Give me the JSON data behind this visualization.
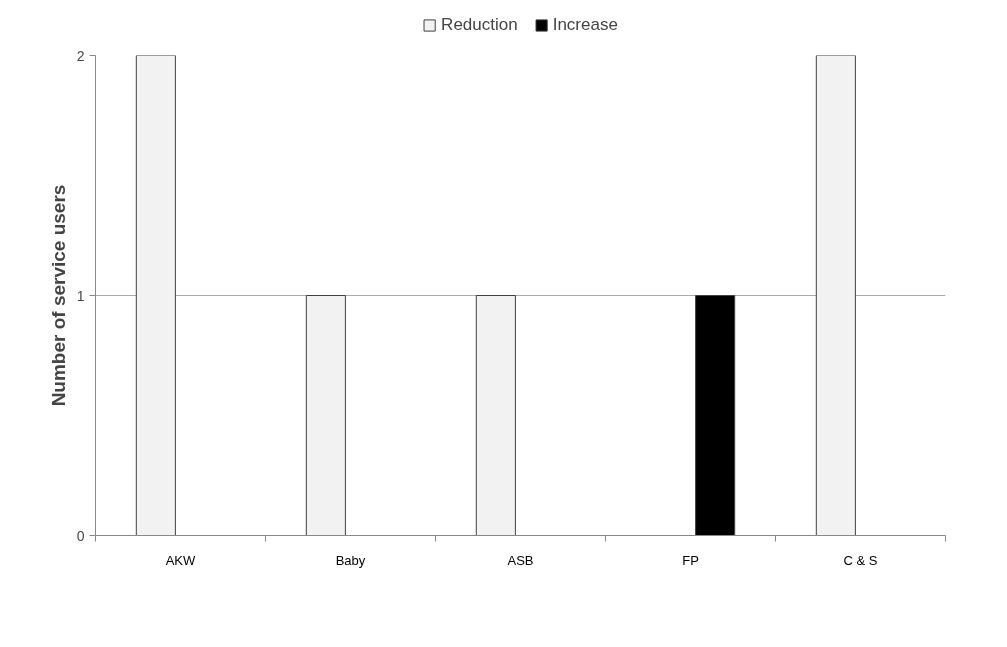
{
  "chart_data": {
    "type": "bar",
    "ylabel": "Number of service users",
    "categories": [
      "AKW",
      "Baby",
      "ASB",
      "FP",
      "C & S"
    ],
    "series": [
      {
        "name": "Reduction",
        "color": "#f2f2f2",
        "values": [
          2,
          1,
          1,
          null,
          2
        ]
      },
      {
        "name": "Increase",
        "color": "#000000",
        "values": [
          null,
          null,
          null,
          1,
          null
        ]
      }
    ],
    "ylim": [
      0,
      2
    ],
    "yticks": [
      0,
      1,
      2
    ],
    "grid": "y",
    "legend": "top"
  }
}
